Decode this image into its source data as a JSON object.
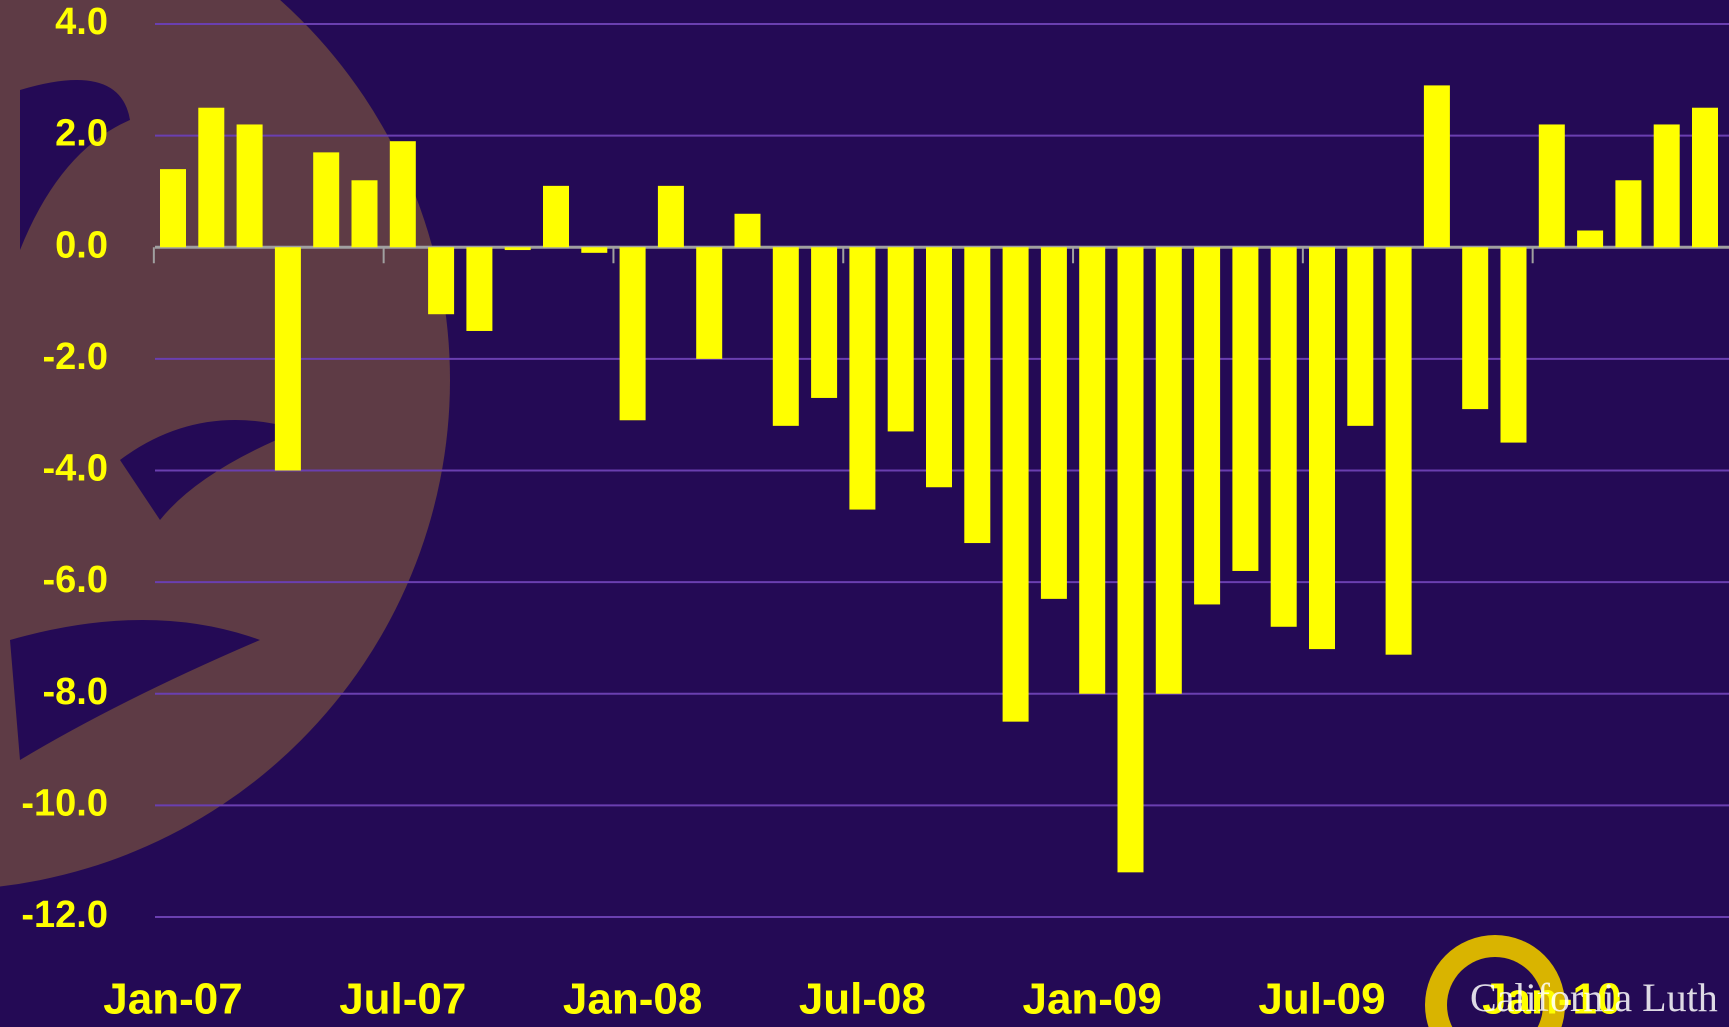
{
  "chart_data": {
    "type": "bar",
    "categories": [
      "Jan-07",
      null,
      null,
      null,
      null,
      null,
      "Jul-07",
      null,
      null,
      null,
      null,
      null,
      "Jan-08",
      null,
      null,
      null,
      null,
      null,
      "Jul-08",
      null,
      null,
      null,
      null,
      null,
      "Jan-09",
      null,
      null,
      null,
      null,
      null,
      "Jul-09",
      null,
      null,
      null,
      null,
      null,
      "Jan-10",
      null,
      null,
      null,
      null
    ],
    "values": [
      1.4,
      2.5,
      2.2,
      -4.0,
      1.7,
      1.2,
      1.9,
      -1.2,
      -1.5,
      -0.05,
      1.1,
      -0.1,
      -3.1,
      1.1,
      -2.0,
      0.6,
      -3.2,
      -2.7,
      -4.7,
      -3.3,
      -4.3,
      -5.3,
      -8.5,
      -6.3,
      -8.0,
      -11.2,
      -8.0,
      -6.4,
      -5.8,
      -6.8,
      -7.2,
      -3.2,
      -7.3,
      2.9,
      -2.9,
      -3.5,
      2.2,
      0.3,
      1.2,
      2.2,
      2.5
    ],
    "color": "#ffff00",
    "ylim": [
      -12,
      4
    ],
    "yticks": [
      {
        "value": 4,
        "label": "4.0"
      },
      {
        "value": 2,
        "label": "2.0"
      },
      {
        "value": 0,
        "label": "0.0"
      },
      {
        "value": -2,
        "label": "-2.0"
      },
      {
        "value": -4,
        "label": "-4.0"
      },
      {
        "value": -6,
        "label": "-6.0"
      },
      {
        "value": -8,
        "label": "-8.0"
      },
      {
        "value": -10,
        "label": "-10.0"
      },
      {
        "value": -12,
        "label": "-12.0"
      }
    ],
    "grid": true,
    "logo_text": "California Luth"
  }
}
